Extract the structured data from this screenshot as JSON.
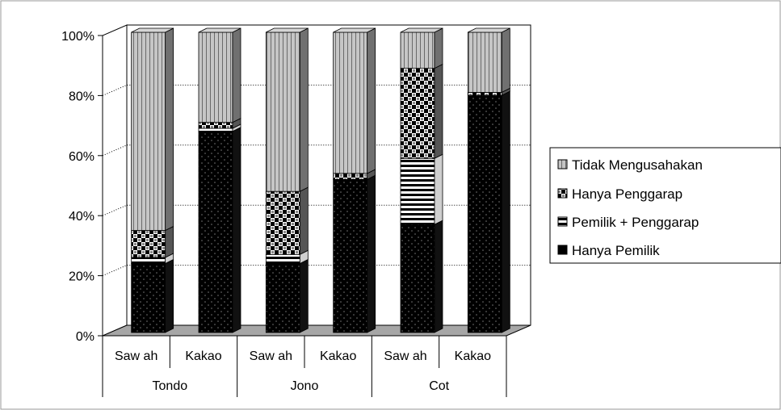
{
  "chart_data": {
    "type": "bar",
    "stacked": true,
    "normalized_percent": true,
    "title": "",
    "xlabel": "",
    "ylabel": "",
    "ylim": [
      0,
      100
    ],
    "y_ticks": [
      "0%",
      "20%",
      "40%",
      "60%",
      "80%",
      "100%"
    ],
    "grid": true,
    "legend_position": "right",
    "categories": [
      "Saw ah",
      "Kakao",
      "Saw ah",
      "Kakao",
      "Saw ah",
      "Kakao"
    ],
    "groups": [
      {
        "label": "Tondo",
        "span": 2
      },
      {
        "label": "Jono",
        "span": 2
      },
      {
        "label": "Cot",
        "span": 2
      }
    ],
    "series": [
      {
        "name": "Hanya Pemilik",
        "values": [
          23,
          67,
          23,
          51,
          36,
          79
        ]
      },
      {
        "name": "Pemilik + Penggarap",
        "values": [
          2,
          1,
          3,
          0,
          22,
          0
        ]
      },
      {
        "name": "Hanya Penggarap",
        "values": [
          9,
          2,
          21,
          2,
          30,
          1
        ]
      },
      {
        "name": "Tidak Mengusahakan",
        "values": [
          66,
          30,
          53,
          47,
          12,
          20
        ]
      }
    ],
    "legend_order": [
      "Tidak Mengusahakan",
      "Hanya Penggarap",
      "Pemilik + Penggarap",
      "Hanya Pemilik"
    ],
    "colors": {
      "Hanya Pemilik": "#000000",
      "Pemilik + Penggarap": "#ffffff",
      "Hanya Penggarap": "#d0d0d0",
      "Tidak Mengusahakan": "#c0c0c0",
      "floor": "#a6a6a6",
      "wall": "#ffffff"
    }
  }
}
